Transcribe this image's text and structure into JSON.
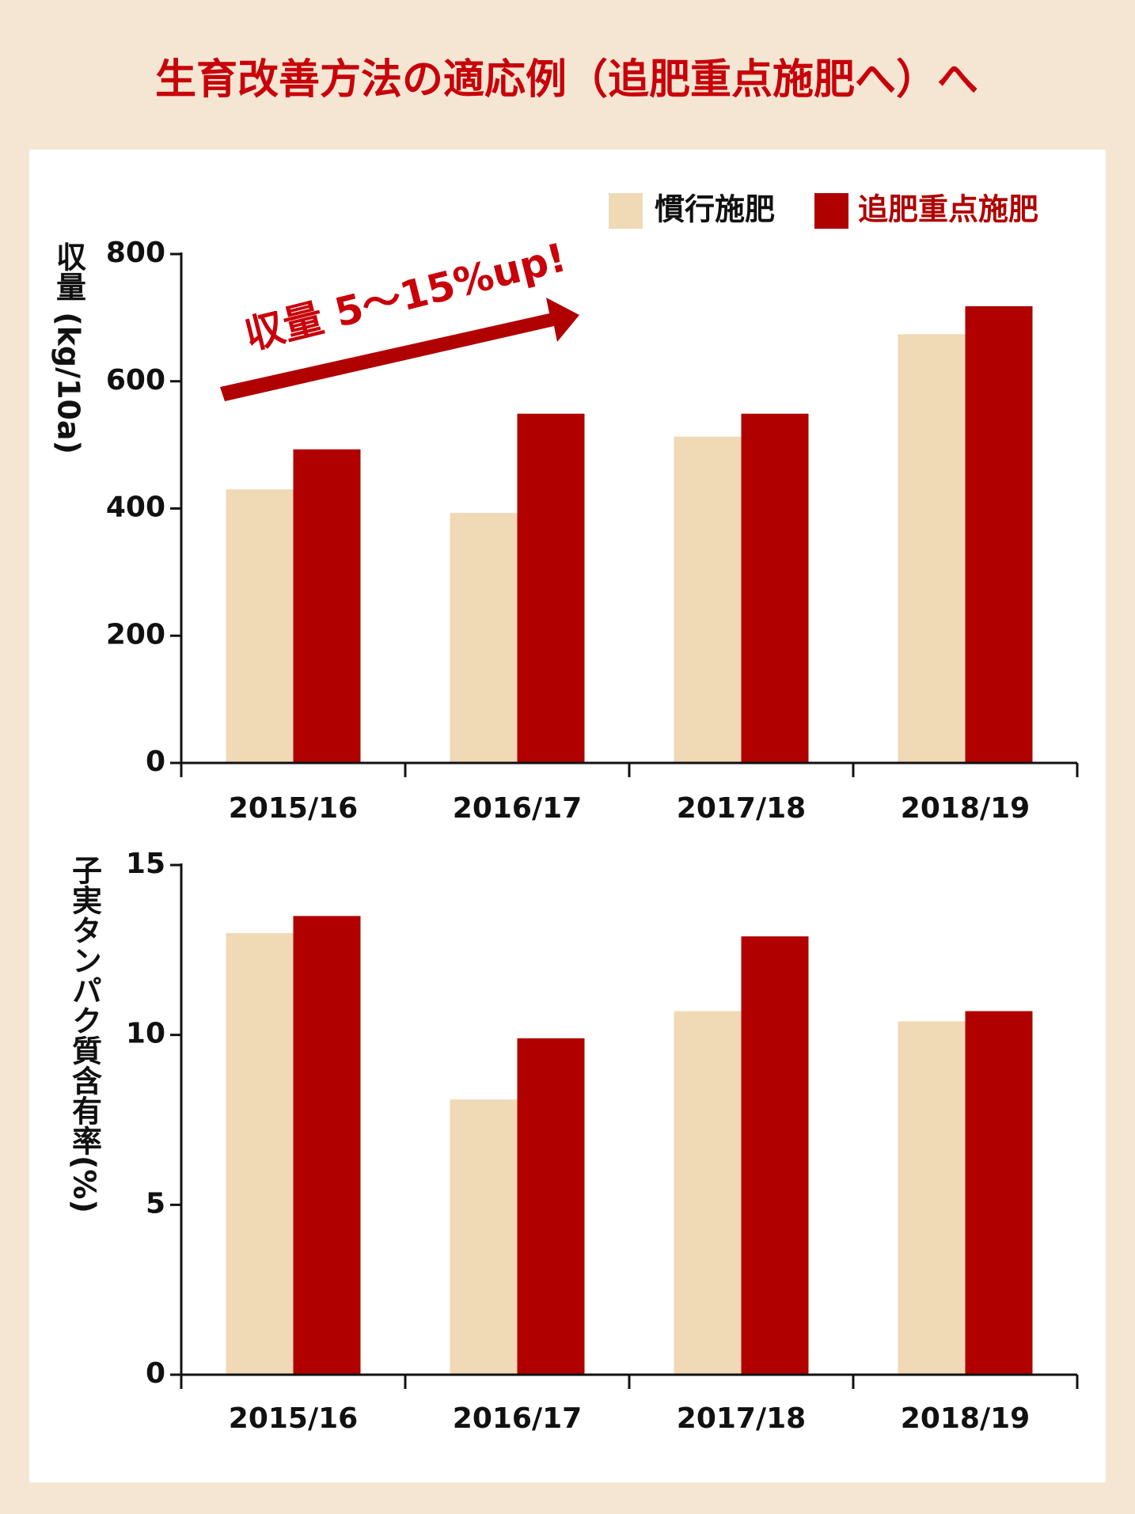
{
  "chart_data": [
    {
      "type": "bar",
      "title": "生育改善方法の適応例（追肥重点施肥へ）へ",
      "annotation": "収量 5〜15%up!",
      "y_label": "収量 (kg/10a)",
      "categories": [
        "2015/16",
        "2016/17",
        "2017/18",
        "2018/19"
      ],
      "series": [
        {
          "name": "慣行施肥",
          "color": "#f0d9b5",
          "values": [
            430,
            393,
            513,
            674
          ]
        },
        {
          "name": "追肥重点施肥",
          "color": "#b00000",
          "values": [
            493,
            549,
            549,
            718
          ]
        }
      ],
      "ylim": [
        0,
        800
      ],
      "yticks": [
        0,
        200,
        400,
        600,
        800
      ]
    },
    {
      "type": "bar",
      "y_label": "子実タンパク質含有率(%)",
      "categories": [
        "2015/16",
        "2016/17",
        "2017/18",
        "2018/19"
      ],
      "series": [
        {
          "color": "#f0d9b5",
          "values": [
            13.0,
            8.1,
            10.7,
            10.4
          ]
        },
        {
          "color": "#b00000",
          "values": [
            13.5,
            9.9,
            12.9,
            10.7
          ]
        }
      ],
      "ylim": [
        0,
        15
      ],
      "yticks": [
        0,
        5,
        10,
        15
      ]
    }
  ]
}
